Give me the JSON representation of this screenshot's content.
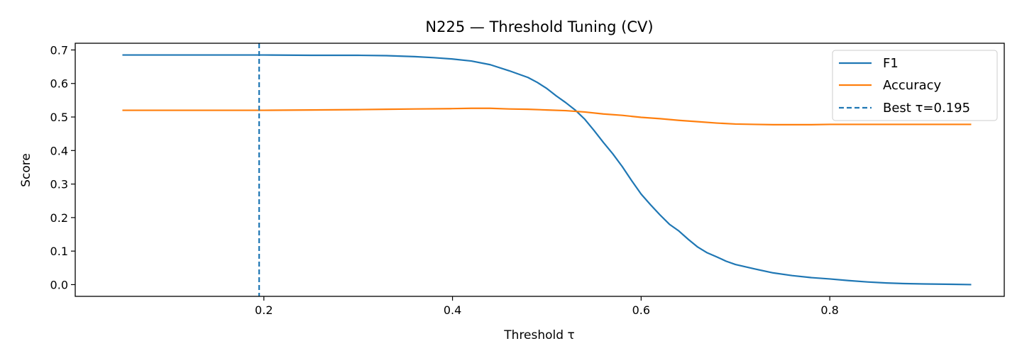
{
  "chart_data": {
    "type": "line",
    "title": "N225 — Threshold Tuning (CV)",
    "xlabel": "Threshold τ",
    "ylabel": "Score",
    "xlim": [
      0.0,
      0.985
    ],
    "ylim": [
      -0.035,
      0.72
    ],
    "xticks": [
      {
        "value": 0.2,
        "label": "0.2"
      },
      {
        "value": 0.4,
        "label": "0.4"
      },
      {
        "value": 0.6,
        "label": "0.6"
      },
      {
        "value": 0.8,
        "label": "0.8"
      }
    ],
    "yticks": [
      {
        "value": 0.0,
        "label": "0.0"
      },
      {
        "value": 0.1,
        "label": "0.1"
      },
      {
        "value": 0.2,
        "label": "0.2"
      },
      {
        "value": 0.3,
        "label": "0.3"
      },
      {
        "value": 0.4,
        "label": "0.4"
      },
      {
        "value": 0.5,
        "label": "0.5"
      },
      {
        "value": 0.6,
        "label": "0.6"
      },
      {
        "value": 0.7,
        "label": "0.7"
      }
    ],
    "grid": false,
    "legend_position": "top-right",
    "series": [
      {
        "name": "F1",
        "color": "#1f77b4",
        "style": "solid",
        "points": [
          [
            0.05,
            0.685
          ],
          [
            0.1,
            0.685
          ],
          [
            0.15,
            0.685
          ],
          [
            0.2,
            0.685
          ],
          [
            0.25,
            0.684
          ],
          [
            0.3,
            0.684
          ],
          [
            0.33,
            0.683
          ],
          [
            0.36,
            0.68
          ],
          [
            0.38,
            0.677
          ],
          [
            0.4,
            0.673
          ],
          [
            0.42,
            0.667
          ],
          [
            0.44,
            0.656
          ],
          [
            0.46,
            0.638
          ],
          [
            0.48,
            0.618
          ],
          [
            0.49,
            0.603
          ],
          [
            0.5,
            0.585
          ],
          [
            0.51,
            0.563
          ],
          [
            0.52,
            0.543
          ],
          [
            0.53,
            0.521
          ],
          [
            0.54,
            0.494
          ],
          [
            0.55,
            0.46
          ],
          [
            0.56,
            0.424
          ],
          [
            0.57,
            0.39
          ],
          [
            0.58,
            0.352
          ],
          [
            0.59,
            0.31
          ],
          [
            0.6,
            0.27
          ],
          [
            0.61,
            0.238
          ],
          [
            0.62,
            0.208
          ],
          [
            0.63,
            0.18
          ],
          [
            0.64,
            0.16
          ],
          [
            0.65,
            0.135
          ],
          [
            0.66,
            0.112
          ],
          [
            0.67,
            0.095
          ],
          [
            0.68,
            0.083
          ],
          [
            0.69,
            0.07
          ],
          [
            0.7,
            0.06
          ],
          [
            0.72,
            0.047
          ],
          [
            0.74,
            0.035
          ],
          [
            0.76,
            0.027
          ],
          [
            0.78,
            0.021
          ],
          [
            0.8,
            0.017
          ],
          [
            0.82,
            0.012
          ],
          [
            0.84,
            0.008
          ],
          [
            0.86,
            0.005
          ],
          [
            0.88,
            0.003
          ],
          [
            0.9,
            0.002
          ],
          [
            0.93,
            0.001
          ],
          [
            0.95,
            0.0
          ]
        ]
      },
      {
        "name": "Accuracy",
        "color": "#ff7f0e",
        "style": "solid",
        "points": [
          [
            0.05,
            0.52
          ],
          [
            0.1,
            0.52
          ],
          [
            0.15,
            0.52
          ],
          [
            0.2,
            0.52
          ],
          [
            0.25,
            0.521
          ],
          [
            0.3,
            0.522
          ],
          [
            0.33,
            0.523
          ],
          [
            0.36,
            0.524
          ],
          [
            0.4,
            0.525
          ],
          [
            0.42,
            0.526
          ],
          [
            0.44,
            0.526
          ],
          [
            0.46,
            0.524
          ],
          [
            0.48,
            0.523
          ],
          [
            0.5,
            0.521
          ],
          [
            0.52,
            0.519
          ],
          [
            0.54,
            0.515
          ],
          [
            0.56,
            0.509
          ],
          [
            0.58,
            0.505
          ],
          [
            0.6,
            0.499
          ],
          [
            0.62,
            0.495
          ],
          [
            0.64,
            0.49
          ],
          [
            0.66,
            0.486
          ],
          [
            0.68,
            0.482
          ],
          [
            0.7,
            0.479
          ],
          [
            0.72,
            0.478
          ],
          [
            0.74,
            0.477
          ],
          [
            0.76,
            0.477
          ],
          [
            0.78,
            0.477
          ],
          [
            0.8,
            0.478
          ],
          [
            0.85,
            0.478
          ],
          [
            0.9,
            0.478
          ],
          [
            0.95,
            0.478
          ]
        ]
      }
    ],
    "vline": {
      "name": "Best τ=0.195",
      "x": 0.195,
      "color": "#1f77b4",
      "style": "dashed"
    }
  }
}
